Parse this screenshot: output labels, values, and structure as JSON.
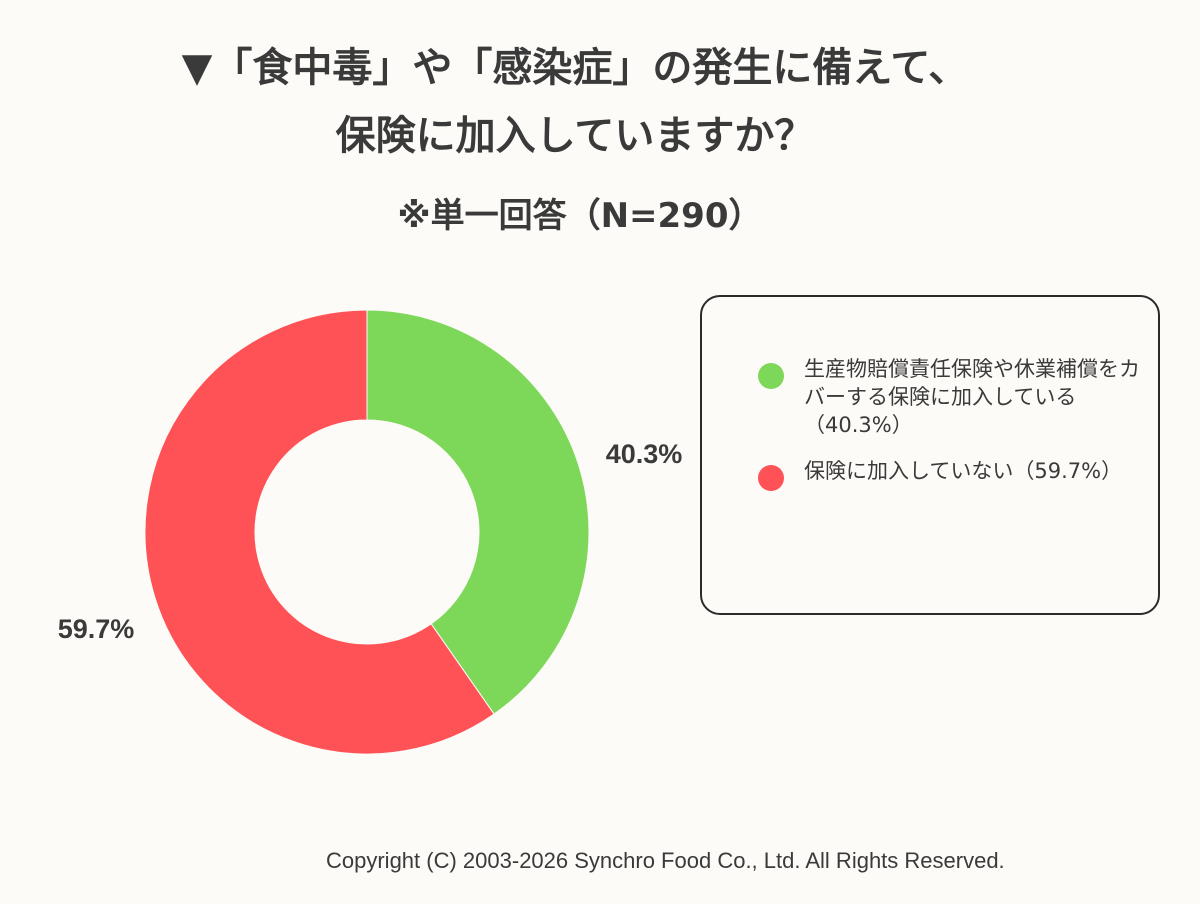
{
  "title_line1": "▼「食中毒」や「感染症」の発生に備えて、",
  "title_line2": "保険に加入していますか？",
  "subtitle": "※単一回答（N=290）",
  "copyright": "Copyright (C) 2003-2026  Synchro Food Co., Ltd. All Rights Reserved.",
  "chart_data": {
    "type": "pie",
    "variant": "donut",
    "title": "▼「食中毒」や「感染症」の発生に備えて、保険に加入していますか？",
    "subtitle": "※単一回答（N=290）",
    "legend_position": "right",
    "slices": [
      {
        "label": "生産物賠償責任保険や休業補償をカバーする保険に加入している（40.3%）",
        "value": 40.3,
        "value_label": "40.3%",
        "color": "#7dd85a"
      },
      {
        "label": "保険に加入していない（59.7%）",
        "value": 59.7,
        "value_label": "59.7%",
        "color": "#ff5257"
      }
    ]
  }
}
